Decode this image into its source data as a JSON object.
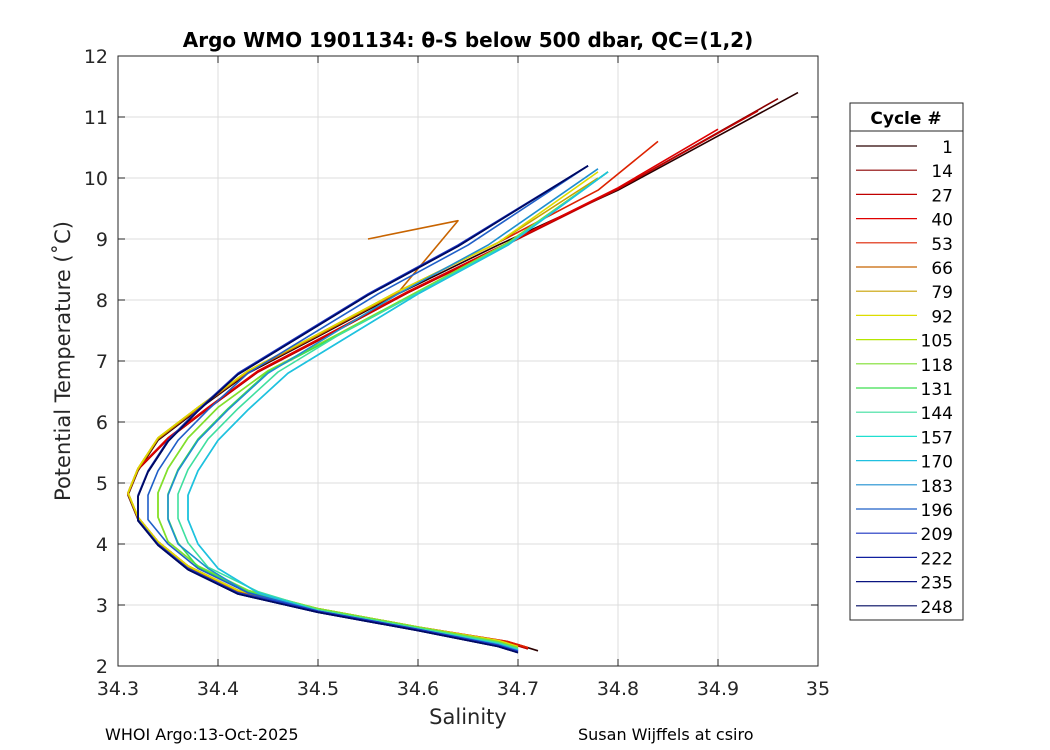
{
  "chart_data": {
    "type": "line",
    "title": "Argo WMO 1901134: θ-S below 500 dbar,  QC=(1,2)",
    "xlabel": "Salinity",
    "ylabel": "Potential Temperature (˚C)",
    "xlim": [
      34.3,
      35
    ],
    "ylim": [
      2,
      12
    ],
    "xticks": [
      "34.3",
      "34.4",
      "34.5",
      "34.6",
      "34.7",
      "34.8",
      "34.9",
      "35"
    ],
    "yticks": [
      "2",
      "3",
      "4",
      "5",
      "6",
      "7",
      "8",
      "9",
      "10",
      "11",
      "12"
    ],
    "grid": true,
    "legend": {
      "title": "Cycle #",
      "placement": "right-outside",
      "entries": [
        "1",
        "14",
        "27",
        "40",
        "53",
        "66",
        "79",
        "92",
        "105",
        "118",
        "131",
        "144",
        "157",
        "170",
        "183",
        "196",
        "209",
        "222",
        "235",
        "248"
      ],
      "colors": [
        "#2a0000",
        "#8b0000",
        "#c00000",
        "#e00000",
        "#dd2200",
        "#c86400",
        "#c8a000",
        "#dddd00",
        "#b4e600",
        "#7fdf30",
        "#3fdf50",
        "#3fdf9f",
        "#20dfd0",
        "#20c0e0",
        "#1f8fd0",
        "#1f5fc8",
        "#1a33c0",
        "#10209f",
        "#0a1480",
        "#000a60"
      ]
    },
    "series": [
      {
        "name": "1",
        "x": [
          34.72,
          34.7,
          34.6,
          34.5,
          34.42,
          34.37,
          34.34,
          34.32,
          34.31,
          34.32,
          34.34,
          34.38,
          34.43,
          34.5,
          34.58,
          34.68,
          34.8,
          34.98
        ],
        "y": [
          2.25,
          2.35,
          2.6,
          2.9,
          3.2,
          3.6,
          4.0,
          4.4,
          4.8,
          5.2,
          5.7,
          6.2,
          6.8,
          7.4,
          8.1,
          8.9,
          9.8,
          11.4
        ]
      },
      {
        "name": "14",
        "x": [
          34.71,
          34.69,
          34.6,
          34.5,
          34.42,
          34.37,
          34.34,
          34.32,
          34.31,
          34.32,
          34.35,
          34.39,
          34.44,
          34.51,
          34.59,
          34.69,
          34.8,
          34.96
        ],
        "y": [
          2.28,
          2.38,
          2.62,
          2.92,
          3.22,
          3.62,
          4.02,
          4.42,
          4.82,
          5.22,
          5.72,
          6.22,
          6.82,
          7.42,
          8.12,
          8.92,
          9.82,
          11.3
        ]
      },
      {
        "name": "27",
        "x": [
          34.71,
          34.69,
          34.6,
          34.5,
          34.42,
          34.37,
          34.34,
          34.32,
          34.31,
          34.32,
          34.35,
          34.39,
          34.44,
          34.51,
          34.59,
          34.69,
          34.8,
          34.94
        ],
        "y": [
          2.28,
          2.38,
          2.62,
          2.92,
          3.22,
          3.62,
          4.02,
          4.42,
          4.82,
          5.22,
          5.72,
          6.22,
          6.82,
          7.42,
          8.12,
          8.92,
          9.82,
          11.1
        ]
      },
      {
        "name": "40",
        "x": [
          34.71,
          34.69,
          34.6,
          34.5,
          34.42,
          34.37,
          34.34,
          34.32,
          34.31,
          34.32,
          34.35,
          34.39,
          34.44,
          34.51,
          34.59,
          34.69,
          34.8,
          34.9
        ],
        "y": [
          2.3,
          2.4,
          2.64,
          2.94,
          3.24,
          3.64,
          4.04,
          4.44,
          4.84,
          5.24,
          5.74,
          6.24,
          6.84,
          7.44,
          8.14,
          8.94,
          9.84,
          10.8
        ]
      },
      {
        "name": "53",
        "x": [
          34.71,
          34.69,
          34.6,
          34.5,
          34.42,
          34.37,
          34.34,
          34.32,
          34.31,
          34.32,
          34.34,
          34.38,
          34.43,
          34.5,
          34.58,
          34.68,
          34.78,
          34.84
        ],
        "y": [
          2.3,
          2.4,
          2.64,
          2.94,
          3.24,
          3.64,
          4.04,
          4.44,
          4.84,
          5.24,
          5.74,
          6.24,
          6.84,
          7.44,
          8.14,
          8.94,
          9.8,
          10.6
        ]
      },
      {
        "name": "66",
        "x": [
          34.7,
          34.68,
          34.6,
          34.5,
          34.42,
          34.37,
          34.34,
          34.32,
          34.31,
          34.32,
          34.34,
          34.38,
          34.43,
          34.5,
          34.58,
          34.64,
          34.55
        ],
        "y": [
          2.3,
          2.4,
          2.62,
          2.92,
          3.22,
          3.62,
          4.02,
          4.42,
          4.82,
          5.22,
          5.72,
          6.22,
          6.82,
          7.42,
          8.12,
          9.3,
          9.0
        ]
      },
      {
        "name": "79",
        "x": [
          34.7,
          34.68,
          34.6,
          34.5,
          34.42,
          34.37,
          34.34,
          34.32,
          34.31,
          34.32,
          34.34,
          34.38,
          34.43,
          34.5,
          34.58,
          34.68,
          34.78
        ],
        "y": [
          2.32,
          2.42,
          2.64,
          2.94,
          3.24,
          3.64,
          4.04,
          4.44,
          4.84,
          5.24,
          5.74,
          6.24,
          6.84,
          7.44,
          8.14,
          8.94,
          10.0
        ]
      },
      {
        "name": "92",
        "x": [
          34.7,
          34.68,
          34.6,
          34.5,
          34.42,
          34.37,
          34.34,
          34.32,
          34.31,
          34.32,
          34.34,
          34.38,
          34.43,
          34.5,
          34.58,
          34.68,
          34.78
        ],
        "y": [
          2.32,
          2.42,
          2.64,
          2.94,
          3.24,
          3.64,
          4.04,
          4.44,
          4.84,
          5.24,
          5.74,
          6.24,
          6.84,
          7.44,
          8.14,
          8.94,
          10.1
        ]
      },
      {
        "name": "105",
        "x": [
          34.7,
          34.68,
          34.6,
          34.5,
          34.43,
          34.38,
          34.35,
          34.34,
          34.34,
          34.35,
          34.37,
          34.4,
          34.45,
          34.52,
          34.6,
          34.69,
          34.79
        ],
        "y": [
          2.3,
          2.4,
          2.64,
          2.94,
          3.24,
          3.64,
          4.04,
          4.44,
          4.84,
          5.24,
          5.74,
          6.24,
          6.84,
          7.44,
          8.14,
          8.94,
          10.1
        ]
      },
      {
        "name": "118",
        "x": [
          34.7,
          34.68,
          34.6,
          34.5,
          34.43,
          34.38,
          34.35,
          34.34,
          34.34,
          34.35,
          34.37,
          34.4,
          34.45,
          34.52,
          34.6,
          34.69,
          34.79
        ],
        "y": [
          2.3,
          2.4,
          2.64,
          2.94,
          3.24,
          3.64,
          4.04,
          4.44,
          4.84,
          5.24,
          5.74,
          6.24,
          6.84,
          7.44,
          8.14,
          8.94,
          10.1
        ]
      },
      {
        "name": "131",
        "x": [
          34.7,
          34.68,
          34.6,
          34.5,
          34.43,
          34.38,
          34.36,
          34.35,
          34.35,
          34.36,
          34.38,
          34.41,
          34.45,
          34.52,
          34.6,
          34.69,
          34.79
        ],
        "y": [
          2.28,
          2.38,
          2.62,
          2.92,
          3.22,
          3.62,
          4.02,
          4.42,
          4.82,
          5.22,
          5.72,
          6.22,
          6.82,
          7.42,
          8.12,
          8.92,
          10.1
        ]
      },
      {
        "name": "144",
        "x": [
          34.7,
          34.68,
          34.6,
          34.5,
          34.44,
          34.39,
          34.37,
          34.36,
          34.36,
          34.37,
          34.39,
          34.42,
          34.46,
          34.52,
          34.6,
          34.69,
          34.79
        ],
        "y": [
          2.28,
          2.38,
          2.62,
          2.92,
          3.22,
          3.62,
          4.02,
          4.42,
          4.82,
          5.22,
          5.72,
          6.22,
          6.82,
          7.42,
          8.12,
          8.92,
          10.1
        ]
      },
      {
        "name": "157",
        "x": [
          34.7,
          34.68,
          34.6,
          34.5,
          34.44,
          34.4,
          34.38,
          34.37,
          34.37,
          34.38,
          34.4,
          34.43,
          34.47,
          34.53,
          34.6,
          34.69,
          34.79
        ],
        "y": [
          2.26,
          2.36,
          2.6,
          2.9,
          3.2,
          3.6,
          4.0,
          4.4,
          4.8,
          5.2,
          5.7,
          6.2,
          6.8,
          7.4,
          8.1,
          8.9,
          10.1
        ]
      },
      {
        "name": "170",
        "x": [
          34.7,
          34.68,
          34.6,
          34.5,
          34.44,
          34.4,
          34.38,
          34.37,
          34.37,
          34.38,
          34.4,
          34.43,
          34.47,
          34.53,
          34.6,
          34.69,
          34.79
        ],
        "y": [
          2.26,
          2.36,
          2.6,
          2.9,
          3.2,
          3.6,
          4.0,
          4.4,
          4.8,
          5.2,
          5.7,
          6.2,
          6.8,
          7.4,
          8.1,
          8.9,
          10.1
        ]
      },
      {
        "name": "183",
        "x": [
          34.7,
          34.68,
          34.6,
          34.5,
          34.43,
          34.39,
          34.36,
          34.35,
          34.35,
          34.36,
          34.38,
          34.41,
          34.45,
          34.51,
          34.58,
          34.67,
          34.78
        ],
        "y": [
          2.25,
          2.35,
          2.6,
          2.9,
          3.2,
          3.6,
          4.0,
          4.4,
          4.8,
          5.2,
          5.7,
          6.2,
          6.8,
          7.4,
          8.1,
          8.9,
          10.15
        ]
      },
      {
        "name": "196",
        "x": [
          34.7,
          34.68,
          34.6,
          34.5,
          34.43,
          34.38,
          34.35,
          34.33,
          34.33,
          34.34,
          34.36,
          34.39,
          34.43,
          34.49,
          34.56,
          34.65,
          34.77
        ],
        "y": [
          2.24,
          2.34,
          2.6,
          2.9,
          3.2,
          3.6,
          4.0,
          4.4,
          4.8,
          5.2,
          5.7,
          6.2,
          6.8,
          7.4,
          8.1,
          8.9,
          10.2
        ]
      },
      {
        "name": "209",
        "x": [
          34.7,
          34.68,
          34.6,
          34.5,
          34.42,
          34.37,
          34.34,
          34.32,
          34.32,
          34.33,
          34.35,
          34.38,
          34.42,
          34.48,
          34.55,
          34.64,
          34.77
        ],
        "y": [
          2.24,
          2.34,
          2.6,
          2.9,
          3.2,
          3.6,
          4.0,
          4.4,
          4.8,
          5.2,
          5.7,
          6.2,
          6.8,
          7.4,
          8.1,
          8.9,
          10.2
        ]
      },
      {
        "name": "222",
        "x": [
          34.7,
          34.68,
          34.6,
          34.5,
          34.42,
          34.37,
          34.34,
          34.32,
          34.32,
          34.33,
          34.35,
          34.38,
          34.42,
          34.48,
          34.55,
          34.64,
          34.77
        ],
        "y": [
          2.22,
          2.32,
          2.58,
          2.88,
          3.18,
          3.58,
          3.98,
          4.38,
          4.78,
          5.18,
          5.68,
          6.18,
          6.78,
          7.38,
          8.08,
          8.88,
          10.2
        ]
      },
      {
        "name": "235",
        "x": [
          34.7,
          34.68,
          34.6,
          34.5,
          34.42,
          34.37,
          34.34,
          34.32,
          34.32,
          34.33,
          34.35,
          34.38,
          34.42,
          34.48,
          34.55,
          34.64,
          34.77
        ],
        "y": [
          2.22,
          2.32,
          2.58,
          2.88,
          3.18,
          3.58,
          3.98,
          4.38,
          4.78,
          5.18,
          5.68,
          6.18,
          6.78,
          7.38,
          8.08,
          8.88,
          10.2
        ]
      },
      {
        "name": "248",
        "x": [
          34.7,
          34.68,
          34.6,
          34.5,
          34.42,
          34.37,
          34.34,
          34.32,
          34.32,
          34.33,
          34.35,
          34.38,
          34.42,
          34.48,
          34.55,
          34.64,
          34.77
        ],
        "y": [
          2.22,
          2.32,
          2.58,
          2.88,
          3.18,
          3.58,
          3.98,
          4.38,
          4.78,
          5.18,
          5.68,
          6.18,
          6.78,
          7.38,
          8.08,
          8.88,
          10.2
        ]
      }
    ]
  },
  "footer": {
    "left": "WHOI Argo:13-Oct-2025",
    "right": "Susan Wijffels at csiro"
  }
}
